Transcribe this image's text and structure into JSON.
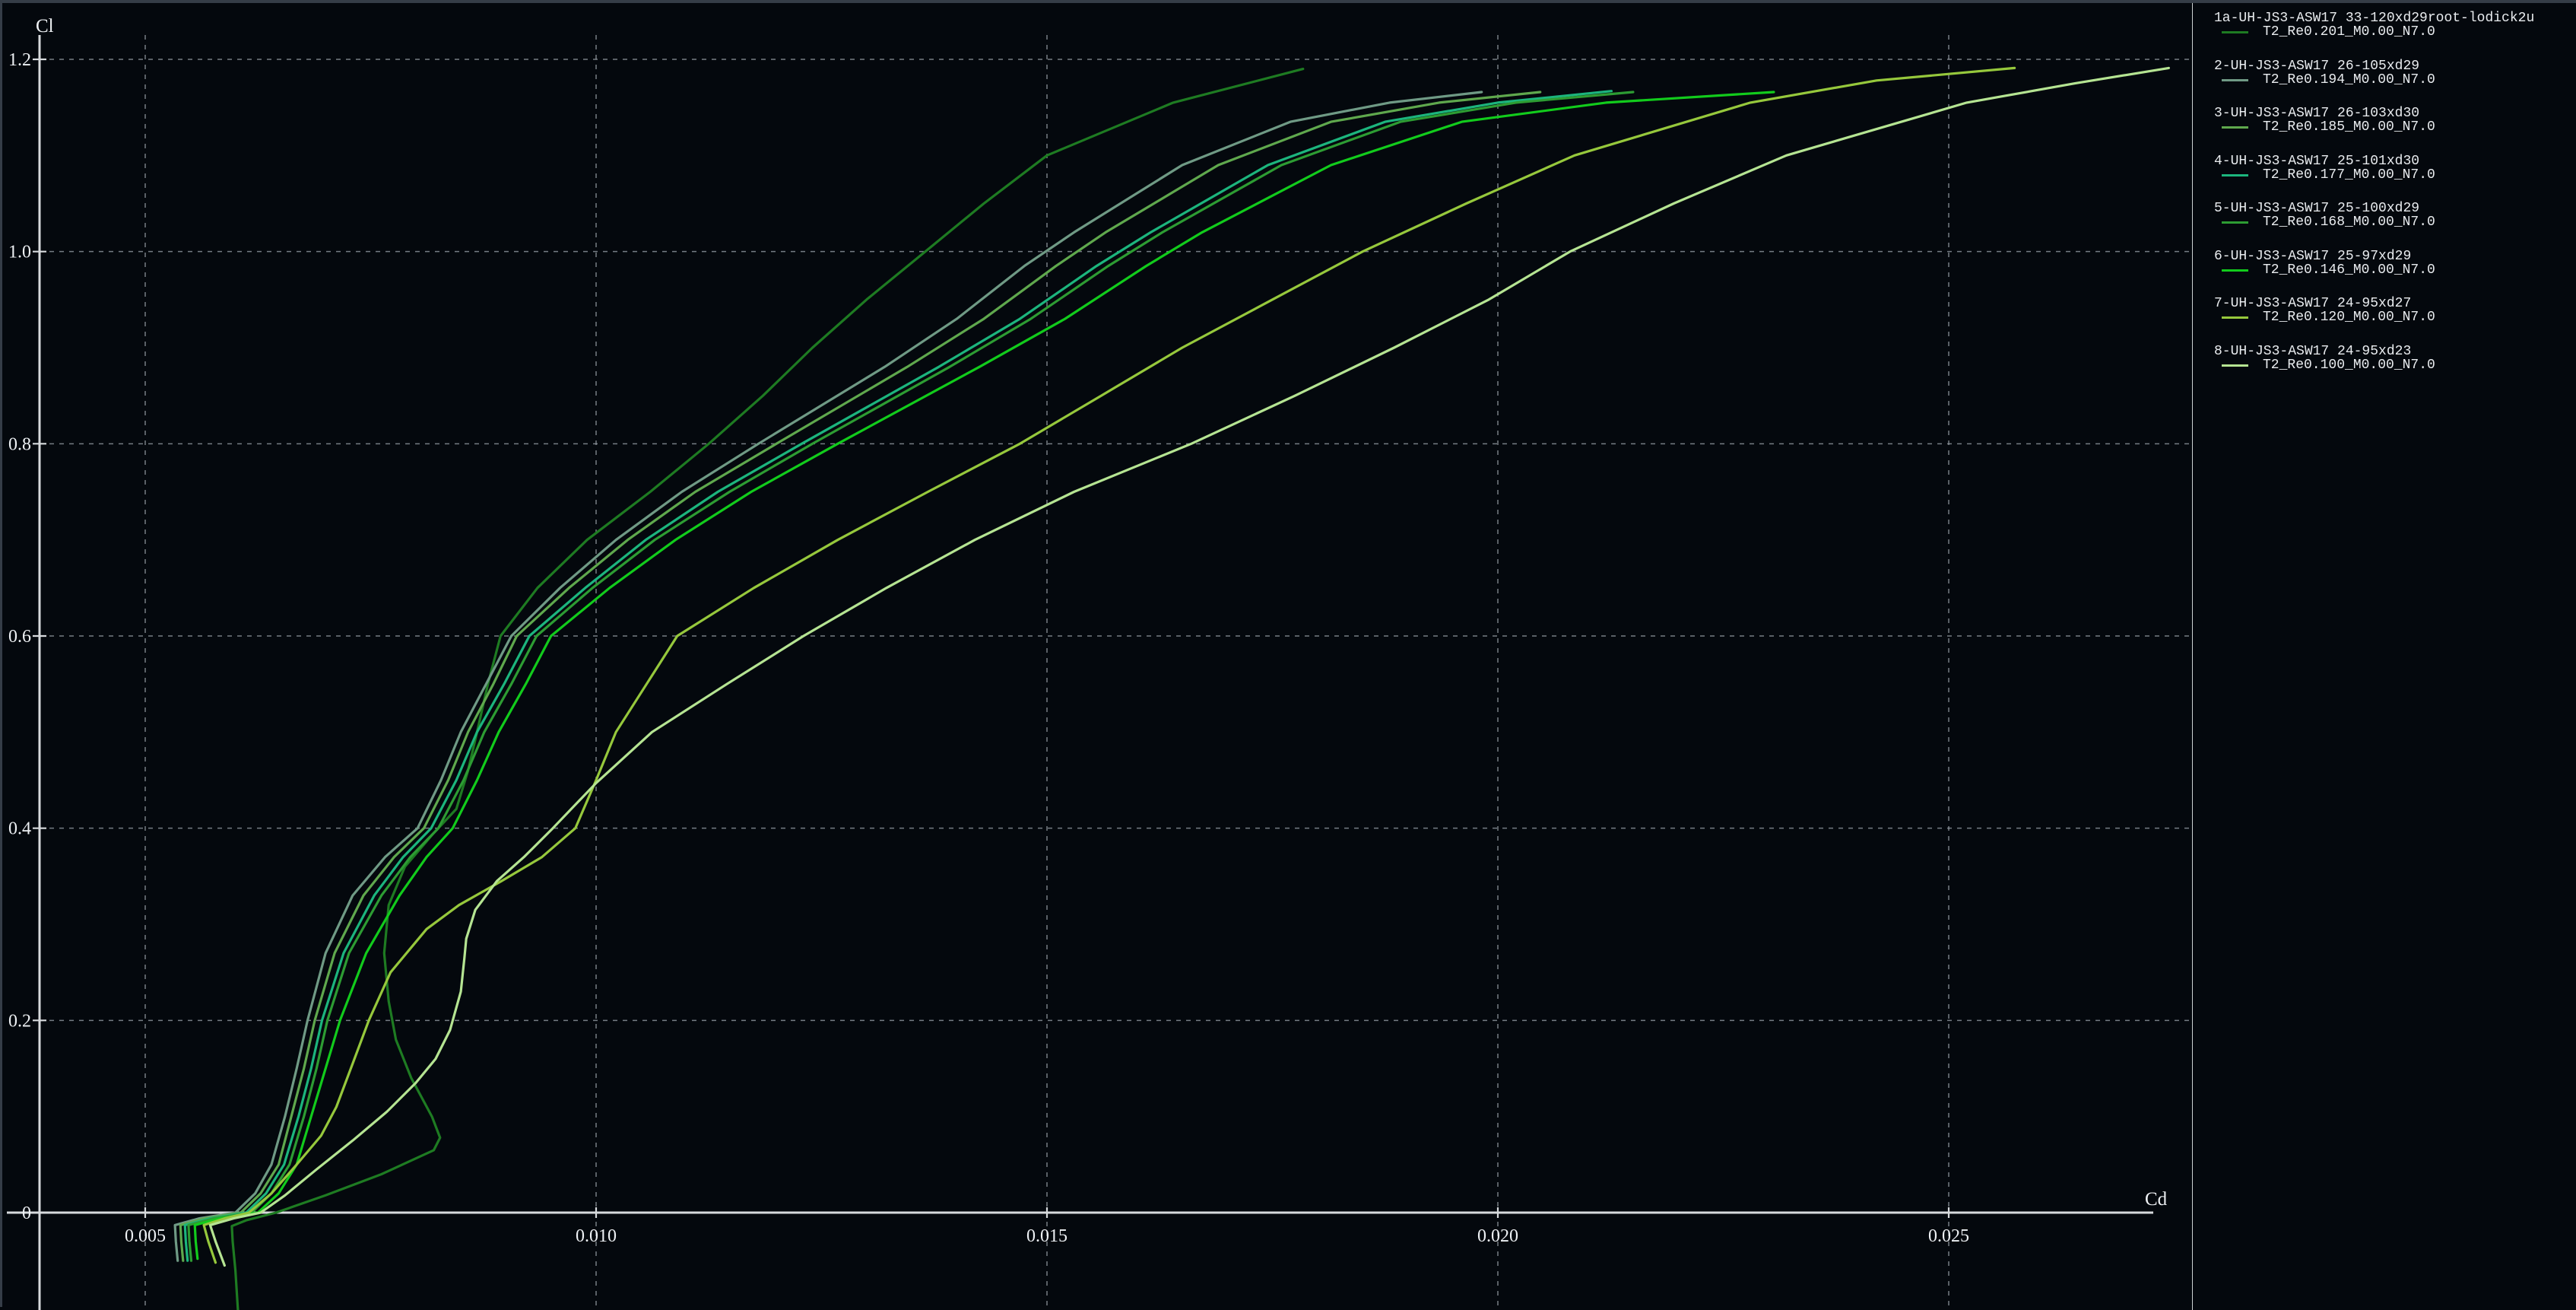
{
  "window": {
    "background": "#04080d",
    "frame_border_color": "#353d47",
    "legend_divider_color": "#ccd2d2",
    "axis_color": "#d7dadd",
    "grid_color": "#949ba2",
    "text_color": "#eef1f4"
  },
  "chart_data": {
    "type": "line",
    "title": "",
    "xlabel": "Cd",
    "ylabel": "Cl",
    "grid": "dashed",
    "legend_position": "right-panel",
    "xlim": [
      0.0034,
      0.0277
    ],
    "ylim": [
      -0.101,
      1.235
    ],
    "x_ticks": [
      0.005,
      0.01,
      0.015,
      0.02,
      0.025
    ],
    "x_tick_labels": [
      "0.005",
      "0.010",
      "0.015",
      "0.020",
      "0.025"
    ],
    "y_ticks": [
      0,
      0.2,
      0.4,
      0.6,
      0.8,
      1.0,
      1.2
    ],
    "y_tick_labels": [
      "0",
      "0.2",
      "0.4",
      "0.6",
      "0.8",
      "1.0",
      "1.2"
    ],
    "series": [
      {
        "name": "1a-UH-JS3-ASW17 33-120xd29root-lodick2u",
        "sub": "T2_Re0.201_M0.00_N7.0",
        "color": "#1e7b22",
        "points": [
          [
            0.00603,
            -0.105
          ],
          [
            0.006,
            -0.06
          ],
          [
            0.00597,
            -0.03
          ],
          [
            0.00596,
            -0.014
          ],
          [
            0.00612,
            -0.008
          ],
          [
            0.00645,
            0.0
          ],
          [
            0.007,
            0.018
          ],
          [
            0.00762,
            0.04
          ],
          [
            0.0082,
            0.065
          ],
          [
            0.00827,
            0.078
          ],
          [
            0.00818,
            0.1
          ],
          [
            0.00795,
            0.14
          ],
          [
            0.00778,
            0.18
          ],
          [
            0.0077,
            0.22
          ],
          [
            0.00765,
            0.27
          ],
          [
            0.0077,
            0.32
          ],
          [
            0.00788,
            0.36
          ],
          [
            0.0082,
            0.395
          ],
          [
            0.00845,
            0.42
          ],
          [
            0.00858,
            0.46
          ],
          [
            0.00868,
            0.5
          ],
          [
            0.0088,
            0.55
          ],
          [
            0.00894,
            0.6
          ],
          [
            0.00935,
            0.65
          ],
          [
            0.0099,
            0.7
          ],
          [
            0.0106,
            0.75
          ],
          [
            0.01125,
            0.8
          ],
          [
            0.01185,
            0.85
          ],
          [
            0.0124,
            0.9
          ],
          [
            0.013,
            0.95
          ],
          [
            0.01365,
            1.0
          ],
          [
            0.0143,
            1.05
          ],
          [
            0.015,
            1.1
          ],
          [
            0.0164,
            1.155
          ],
          [
            0.01784,
            1.19
          ]
        ]
      },
      {
        "name": "2-UH-JS3-ASW17 26-105xd29",
        "sub": "T2_Re0.194_M0.00_N7.0",
        "color": "#6f9a85",
        "points": [
          [
            0.00536,
            -0.05
          ],
          [
            0.00534,
            -0.03
          ],
          [
            0.00533,
            -0.013
          ],
          [
            0.0056,
            -0.006
          ],
          [
            0.006,
            0.0
          ],
          [
            0.00622,
            0.02
          ],
          [
            0.0064,
            0.05
          ],
          [
            0.00655,
            0.1
          ],
          [
            0.00668,
            0.15
          ],
          [
            0.0068,
            0.2
          ],
          [
            0.007,
            0.27
          ],
          [
            0.0073,
            0.33
          ],
          [
            0.00766,
            0.37
          ],
          [
            0.00802,
            0.4
          ],
          [
            0.00828,
            0.45
          ],
          [
            0.0085,
            0.5
          ],
          [
            0.00878,
            0.55
          ],
          [
            0.00906,
            0.6
          ],
          [
            0.0096,
            0.65
          ],
          [
            0.01022,
            0.7
          ],
          [
            0.01095,
            0.75
          ],
          [
            0.0118,
            0.8
          ],
          [
            0.0132,
            0.88
          ],
          [
            0.014,
            0.93
          ],
          [
            0.01475,
            0.985
          ],
          [
            0.0153,
            1.02
          ],
          [
            0.0165,
            1.09
          ],
          [
            0.0177,
            1.135
          ],
          [
            0.0188,
            1.155
          ],
          [
            0.01982,
            1.166
          ]
        ]
      },
      {
        "name": "3-UH-JS3-ASW17 26-103xd30",
        "sub": "T2_Re0.185_M0.00_N7.0",
        "color": "#5fa84d",
        "points": [
          [
            0.00542,
            -0.05
          ],
          [
            0.0054,
            -0.03
          ],
          [
            0.00539,
            -0.013
          ],
          [
            0.00566,
            -0.006
          ],
          [
            0.00606,
            0.0
          ],
          [
            0.00628,
            0.02
          ],
          [
            0.00648,
            0.05
          ],
          [
            0.00662,
            0.1
          ],
          [
            0.00676,
            0.15
          ],
          [
            0.00688,
            0.2
          ],
          [
            0.0071,
            0.27
          ],
          [
            0.00742,
            0.33
          ],
          [
            0.00776,
            0.37
          ],
          [
            0.00809,
            0.4
          ],
          [
            0.00836,
            0.45
          ],
          [
            0.00858,
            0.5
          ],
          [
            0.00886,
            0.55
          ],
          [
            0.00912,
            0.6
          ],
          [
            0.0097,
            0.65
          ],
          [
            0.01035,
            0.7
          ],
          [
            0.0111,
            0.75
          ],
          [
            0.012,
            0.8
          ],
          [
            0.01345,
            0.88
          ],
          [
            0.0143,
            0.93
          ],
          [
            0.0151,
            0.985
          ],
          [
            0.01565,
            1.02
          ],
          [
            0.0169,
            1.09
          ],
          [
            0.01815,
            1.135
          ],
          [
            0.01935,
            1.155
          ],
          [
            0.02047,
            1.166
          ]
        ]
      },
      {
        "name": "4-UH-JS3-ASW17 25-101xd30",
        "sub": "T2_Re0.177_M0.00_N7.0",
        "color": "#1cb57d",
        "points": [
          [
            0.00547,
            -0.05
          ],
          [
            0.00545,
            -0.03
          ],
          [
            0.00544,
            -0.013
          ],
          [
            0.00572,
            -0.006
          ],
          [
            0.00612,
            0.0
          ],
          [
            0.00634,
            0.02
          ],
          [
            0.00654,
            0.05
          ],
          [
            0.0067,
            0.1
          ],
          [
            0.00684,
            0.15
          ],
          [
            0.00696,
            0.2
          ],
          [
            0.0072,
            0.27
          ],
          [
            0.00754,
            0.33
          ],
          [
            0.00786,
            0.37
          ],
          [
            0.00817,
            0.4
          ],
          [
            0.00845,
            0.45
          ],
          [
            0.00868,
            0.5
          ],
          [
            0.00898,
            0.55
          ],
          [
            0.00926,
            0.6
          ],
          [
            0.00988,
            0.65
          ],
          [
            0.01055,
            0.7
          ],
          [
            0.01135,
            0.75
          ],
          [
            0.01228,
            0.8
          ],
          [
            0.0138,
            0.88
          ],
          [
            0.0147,
            0.93
          ],
          [
            0.01555,
            0.985
          ],
          [
            0.01615,
            1.02
          ],
          [
            0.01745,
            1.09
          ],
          [
            0.01875,
            1.135
          ],
          [
            0.02,
            1.155
          ],
          [
            0.02126,
            1.167
          ]
        ]
      },
      {
        "name": "5-UH-JS3-ASW17 25-100xd29",
        "sub": "T2_Re0.168_M0.00_N7.0",
        "color": "#2d9c33",
        "points": [
          [
            0.00551,
            -0.05
          ],
          [
            0.00549,
            -0.03
          ],
          [
            0.00548,
            -0.013
          ],
          [
            0.00576,
            -0.006
          ],
          [
            0.00618,
            0.0
          ],
          [
            0.0064,
            0.02
          ],
          [
            0.0066,
            0.05
          ],
          [
            0.00676,
            0.1
          ],
          [
            0.0069,
            0.15
          ],
          [
            0.00702,
            0.2
          ],
          [
            0.00726,
            0.27
          ],
          [
            0.00762,
            0.33
          ],
          [
            0.00794,
            0.37
          ],
          [
            0.00825,
            0.4
          ],
          [
            0.00853,
            0.45
          ],
          [
            0.00876,
            0.5
          ],
          [
            0.00906,
            0.55
          ],
          [
            0.00934,
            0.6
          ],
          [
            0.00996,
            0.65
          ],
          [
            0.01065,
            0.7
          ],
          [
            0.01148,
            0.75
          ],
          [
            0.0124,
            0.8
          ],
          [
            0.01392,
            0.88
          ],
          [
            0.01482,
            0.93
          ],
          [
            0.01568,
            0.985
          ],
          [
            0.01628,
            1.02
          ],
          [
            0.0176,
            1.09
          ],
          [
            0.01892,
            1.135
          ],
          [
            0.0202,
            1.155
          ],
          [
            0.0215,
            1.166
          ]
        ]
      },
      {
        "name": "6-UH-JS3-ASW17 25-97xd29",
        "sub": "T2_Re0.146_M0.00_N7.0",
        "color": "#12cb1c",
        "points": [
          [
            0.00558,
            -0.048
          ],
          [
            0.00556,
            -0.03
          ],
          [
            0.00555,
            -0.013
          ],
          [
            0.00583,
            -0.006
          ],
          [
            0.00625,
            0.0
          ],
          [
            0.00648,
            0.02
          ],
          [
            0.00668,
            0.05
          ],
          [
            0.00684,
            0.1
          ],
          [
            0.007,
            0.15
          ],
          [
            0.00716,
            0.2
          ],
          [
            0.00745,
            0.27
          ],
          [
            0.00782,
            0.33
          ],
          [
            0.00812,
            0.37
          ],
          [
            0.00841,
            0.4
          ],
          [
            0.00868,
            0.45
          ],
          [
            0.00892,
            0.5
          ],
          [
            0.00922,
            0.55
          ],
          [
            0.0095,
            0.6
          ],
          [
            0.01015,
            0.65
          ],
          [
            0.01088,
            0.7
          ],
          [
            0.01172,
            0.75
          ],
          [
            0.01268,
            0.8
          ],
          [
            0.01425,
            0.88
          ],
          [
            0.0152,
            0.93
          ],
          [
            0.0161,
            0.985
          ],
          [
            0.01672,
            1.02
          ],
          [
            0.01815,
            1.09
          ],
          [
            0.0196,
            1.135
          ],
          [
            0.0212,
            1.155
          ],
          [
            0.02306,
            1.166
          ]
        ]
      },
      {
        "name": "7-UH-JS3-ASW17 24-95xd27",
        "sub": "T2_Re0.120_M0.00_N7.0",
        "color": "#96c83c",
        "points": [
          [
            0.00578,
            -0.052
          ],
          [
            0.0057,
            -0.03
          ],
          [
            0.00565,
            -0.013
          ],
          [
            0.00588,
            -0.006
          ],
          [
            0.00615,
            0.0
          ],
          [
            0.0064,
            0.02
          ],
          [
            0.00668,
            0.05
          ],
          [
            0.00695,
            0.08
          ],
          [
            0.00712,
            0.11
          ],
          [
            0.0073,
            0.155
          ],
          [
            0.00748,
            0.2
          ],
          [
            0.00772,
            0.25
          ],
          [
            0.00812,
            0.295
          ],
          [
            0.00848,
            0.32
          ],
          [
            0.00895,
            0.345
          ],
          [
            0.0094,
            0.37
          ],
          [
            0.00977,
            0.4
          ],
          [
            0.01,
            0.45
          ],
          [
            0.01022,
            0.5
          ],
          [
            0.01056,
            0.55
          ],
          [
            0.0109,
            0.6
          ],
          [
            0.01175,
            0.65
          ],
          [
            0.01268,
            0.7
          ],
          [
            0.01368,
            0.75
          ],
          [
            0.0147,
            0.8
          ],
          [
            0.0156,
            0.85
          ],
          [
            0.0165,
            0.9
          ],
          [
            0.0175,
            0.95
          ],
          [
            0.0185,
            1.0
          ],
          [
            0.01965,
            1.05
          ],
          [
            0.02085,
            1.1
          ],
          [
            0.0228,
            1.155
          ],
          [
            0.0242,
            1.178
          ],
          [
            0.02573,
            1.191
          ]
        ]
      },
      {
        "name": "8-UH-JS3-ASW17 24-95xd23",
        "sub": "T2_Re0.100_M0.00_N7.0",
        "color": "#b5e492",
        "points": [
          [
            0.00588,
            -0.055
          ],
          [
            0.00578,
            -0.03
          ],
          [
            0.00572,
            -0.013
          ],
          [
            0.00598,
            -0.006
          ],
          [
            0.00628,
            0.0
          ],
          [
            0.00655,
            0.018
          ],
          [
            0.0069,
            0.045
          ],
          [
            0.0073,
            0.075
          ],
          [
            0.00768,
            0.105
          ],
          [
            0.008,
            0.135
          ],
          [
            0.00822,
            0.16
          ],
          [
            0.00838,
            0.19
          ],
          [
            0.0085,
            0.23
          ],
          [
            0.00854,
            0.265
          ],
          [
            0.00856,
            0.285
          ],
          [
            0.00866,
            0.315
          ],
          [
            0.0089,
            0.345
          ],
          [
            0.0092,
            0.37
          ],
          [
            0.00952,
            0.4
          ],
          [
            0.01,
            0.447
          ],
          [
            0.01062,
            0.5
          ],
          [
            0.01145,
            0.55
          ],
          [
            0.0123,
            0.6
          ],
          [
            0.01322,
            0.65
          ],
          [
            0.0142,
            0.7
          ],
          [
            0.0153,
            0.75
          ],
          [
            0.0166,
            0.8
          ],
          [
            0.01775,
            0.85
          ],
          [
            0.01885,
            0.9
          ],
          [
            0.0199,
            0.95
          ],
          [
            0.0208,
            1.0
          ],
          [
            0.02195,
            1.05
          ],
          [
            0.0232,
            1.1
          ],
          [
            0.0252,
            1.155
          ],
          [
            0.0264,
            1.175
          ],
          [
            0.02744,
            1.191
          ]
        ]
      }
    ]
  },
  "legend": {
    "swatch_shape": "line"
  }
}
